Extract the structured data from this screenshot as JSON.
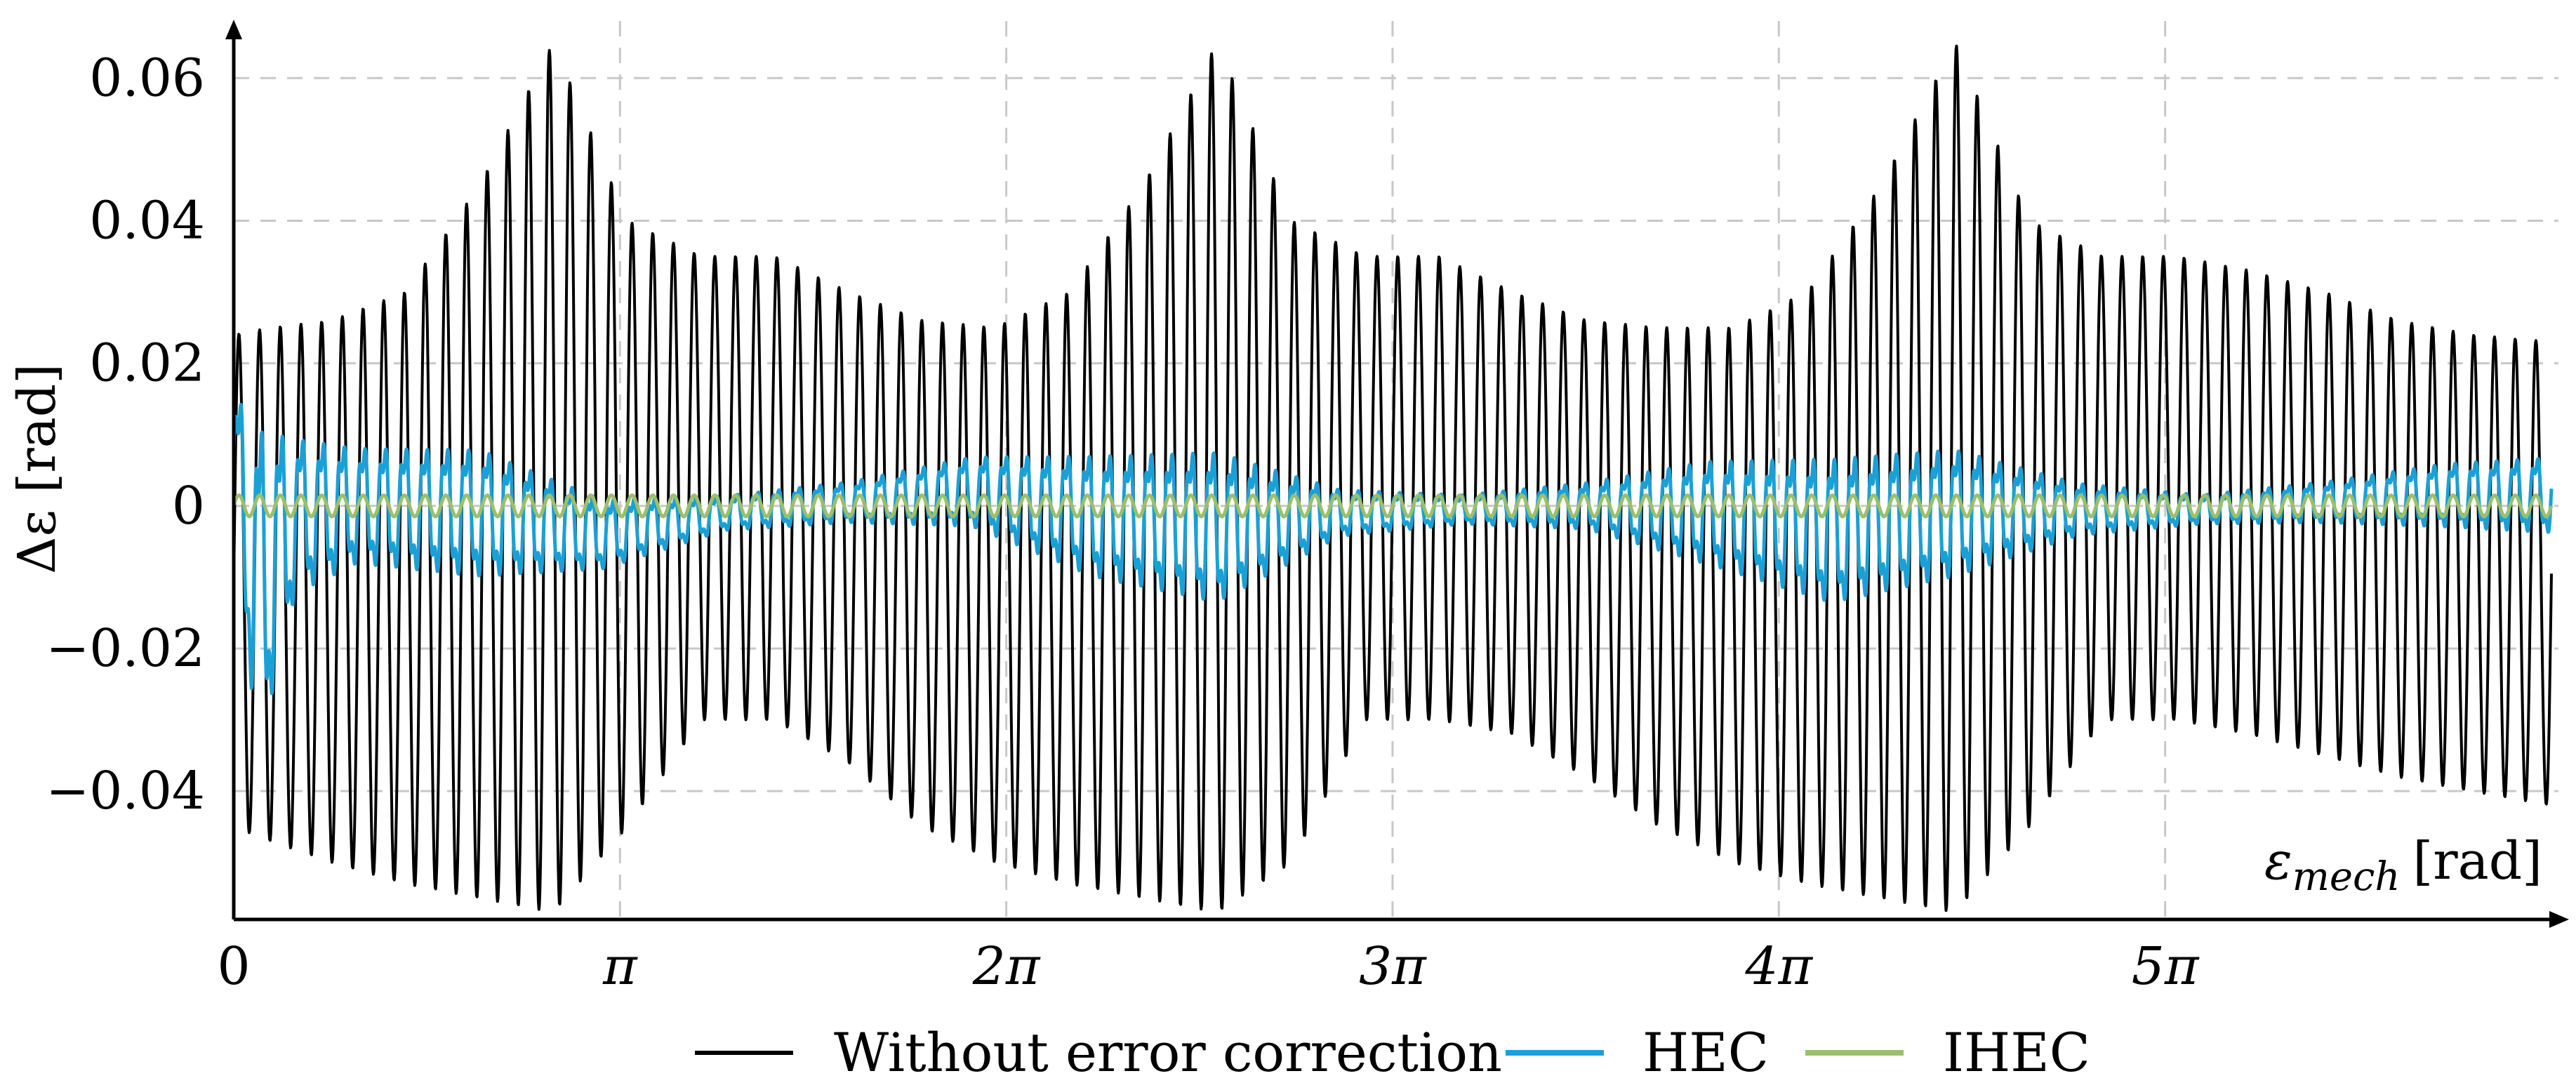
{
  "chart_data": {
    "type": "line",
    "title": "",
    "xlabel_main": "ε",
    "xlabel_sub": "mech",
    "xlabel_unit": "[rad]",
    "ylabel": "Δε [rad]",
    "xlim": [
      0,
      18.85
    ],
    "ylim": [
      -0.058,
      0.068
    ],
    "grid": true,
    "legend_position": "bottom",
    "x_ticks": [
      {
        "value": 0,
        "label": "0"
      },
      {
        "value": 3.1416,
        "label": "π"
      },
      {
        "value": 6.2832,
        "label": "2π"
      },
      {
        "value": 9.4248,
        "label": "3π"
      },
      {
        "value": 12.5664,
        "label": "4π"
      },
      {
        "value": 15.708,
        "label": "5π"
      }
    ],
    "y_ticks": [
      {
        "value": 0.06,
        "label": "0.06"
      },
      {
        "value": 0.04,
        "label": "0.04"
      },
      {
        "value": 0.02,
        "label": "0.02"
      },
      {
        "value": 0,
        "label": "0"
      },
      {
        "value": -0.02,
        "label": "−0.02"
      },
      {
        "value": -0.04,
        "label": "−0.04"
      }
    ],
    "series": [
      {
        "name": "Without error correction",
        "color": "#000000",
        "oscillation_cycles": 112,
        "envelope_x": [
          0,
          0.3,
          0.8,
          1.4,
          2.0,
          2.6,
          3.2,
          3.8,
          4.4,
          5.0,
          5.6,
          6.2,
          6.8,
          7.4,
          8.0,
          8.6,
          9.2,
          9.8,
          10.4,
          11.0,
          11.6,
          12.2,
          12.8,
          13.4,
          14.0,
          14.6,
          15.2,
          15.8,
          16.4,
          17.0,
          17.6,
          18.2,
          18.85
        ],
        "envelope_upper": [
          0.024,
          0.025,
          0.026,
          0.03,
          0.045,
          0.065,
          0.04,
          0.035,
          0.035,
          0.03,
          0.026,
          0.025,
          0.03,
          0.045,
          0.065,
          0.04,
          0.035,
          0.035,
          0.03,
          0.026,
          0.025,
          0.025,
          0.03,
          0.045,
          0.065,
          0.04,
          0.035,
          0.035,
          0.033,
          0.03,
          0.026,
          0.024,
          0.023
        ],
        "envelope_lower": [
          -0.045,
          -0.047,
          -0.05,
          -0.053,
          -0.055,
          -0.057,
          -0.045,
          -0.03,
          -0.03,
          -0.036,
          -0.045,
          -0.05,
          -0.053,
          -0.055,
          -0.057,
          -0.05,
          -0.03,
          -0.03,
          -0.032,
          -0.038,
          -0.045,
          -0.05,
          -0.053,
          -0.055,
          -0.057,
          -0.045,
          -0.03,
          -0.03,
          -0.032,
          -0.035,
          -0.038,
          -0.04,
          -0.042
        ]
      },
      {
        "name": "HEC",
        "color": "#1ba0d6",
        "oscillation_cycles": 112,
        "envelope_x": [
          0,
          0.2,
          0.5,
          1.0,
          2.0,
          3.0,
          4.0,
          5.0,
          6.0,
          7.0,
          8.0,
          9.0,
          10.0,
          11.0,
          12.0,
          13.0,
          14.0,
          15.0,
          16.0,
          17.0,
          18.0,
          18.85
        ],
        "envelope_upper": [
          0.018,
          0.016,
          0.012,
          0.01,
          0.01,
          0.002,
          0.002,
          0.004,
          0.008,
          0.009,
          0.01,
          0.003,
          0.002,
          0.004,
          0.008,
          0.009,
          0.01,
          0.004,
          0.002,
          0.004,
          0.007,
          0.008
        ],
        "envelope_lower": [
          -0.005,
          -0.04,
          -0.015,
          -0.01,
          -0.012,
          -0.01,
          -0.004,
          -0.003,
          -0.004,
          -0.012,
          -0.016,
          -0.005,
          -0.003,
          -0.004,
          -0.01,
          -0.016,
          -0.012,
          -0.005,
          -0.003,
          -0.003,
          -0.004,
          -0.005
        ]
      },
      {
        "name": "IHEC",
        "color": "#9cbf6b",
        "oscillation_cycles": 112,
        "envelope_x": [
          0,
          6.0,
          12.0,
          18.85
        ],
        "envelope_upper": [
          0.0015,
          0.0015,
          0.0015,
          0.0015
        ],
        "envelope_lower": [
          -0.0015,
          -0.0015,
          -0.0015,
          -0.0015
        ]
      }
    ]
  }
}
